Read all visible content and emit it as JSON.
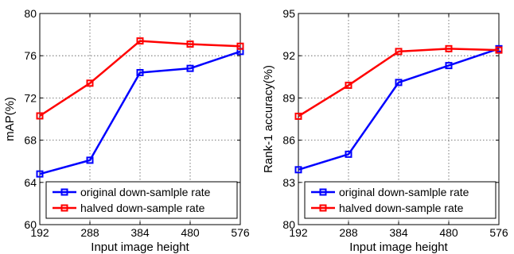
{
  "chart_data": [
    {
      "type": "line",
      "xlabel": "Input image height",
      "ylabel": "mAP(%)",
      "x": [
        192,
        288,
        384,
        480,
        576
      ],
      "x_tick_labels": [
        "192",
        "288",
        "384",
        "480",
        "576"
      ],
      "xlim": [
        192,
        576
      ],
      "ylim": [
        60,
        80
      ],
      "y_ticks": [
        60,
        64,
        68,
        72,
        76,
        80
      ],
      "y_tick_labels": [
        "60",
        "64",
        "68",
        "72",
        "76",
        "80"
      ],
      "grid": true,
      "legend_position": "bottom-right",
      "series": [
        {
          "name": "original down-samlple rate",
          "color": "#0000ff",
          "marker": "square",
          "values": [
            64.8,
            66.1,
            74.4,
            74.8,
            76.4
          ]
        },
        {
          "name": "halved down-sample rate",
          "color": "#ff0000",
          "marker": "square",
          "values": [
            70.3,
            73.4,
            77.4,
            77.1,
            76.9
          ]
        }
      ]
    },
    {
      "type": "line",
      "xlabel": "Input image height",
      "ylabel": "Rank-1 accuracy(%)",
      "x": [
        192,
        288,
        384,
        480,
        576
      ],
      "x_tick_labels": [
        "192",
        "288",
        "384",
        "480",
        "576"
      ],
      "xlim": [
        192,
        576
      ],
      "ylim": [
        80,
        95
      ],
      "y_ticks": [
        80,
        83,
        86,
        89,
        92,
        95
      ],
      "y_tick_labels": [
        "80",
        "83",
        "86",
        "89",
        "92",
        "95"
      ],
      "grid": true,
      "legend_position": "bottom-right",
      "series": [
        {
          "name": "original down-samlple rate",
          "color": "#0000ff",
          "marker": "square",
          "values": [
            83.9,
            85.0,
            90.1,
            91.3,
            92.5
          ]
        },
        {
          "name": "halved down-sample rate",
          "color": "#ff0000",
          "marker": "square",
          "values": [
            87.7,
            89.9,
            92.3,
            92.5,
            92.4
          ]
        }
      ]
    }
  ]
}
